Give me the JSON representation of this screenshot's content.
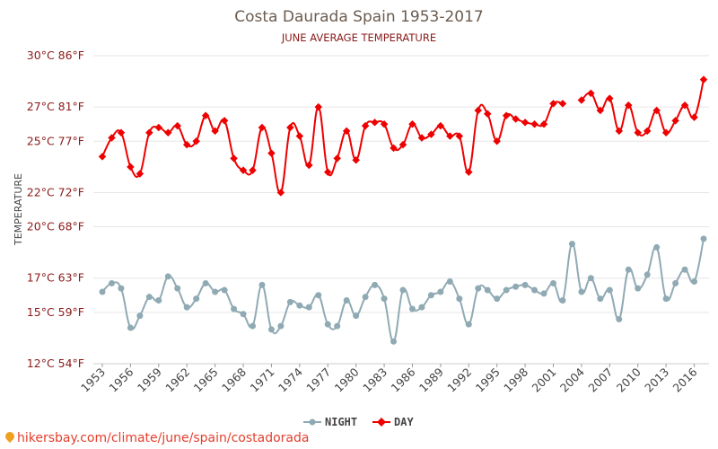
{
  "chart_data": {
    "type": "line",
    "title": "Costa Daurada Spain 1953-2017",
    "subtitle": "JUNE AVERAGE TEMPERATURE",
    "ylabel": "TEMPERATURE",
    "xlabel": "",
    "ylim": [
      12,
      30
    ],
    "y_ticks": [
      {
        "value": 12,
        "label": "12°C 54°F"
      },
      {
        "value": 15,
        "label": "15°C 59°F"
      },
      {
        "value": 17,
        "label": "17°C 63°F"
      },
      {
        "value": 20,
        "label": "20°C 68°F"
      },
      {
        "value": 22,
        "label": "22°C 72°F"
      },
      {
        "value": 25,
        "label": "25°C 77°F"
      },
      {
        "value": 27,
        "label": "27°C 81°F"
      },
      {
        "value": 30,
        "label": "30°C 86°F"
      }
    ],
    "x_tick_labels": [
      "1953",
      "1956",
      "1959",
      "1962",
      "1965",
      "1968",
      "1971",
      "1974",
      "1977",
      "1980",
      "1983",
      "1986",
      "1989",
      "1992",
      "1995",
      "1998",
      "2001",
      "2004",
      "2007",
      "2010",
      "2013",
      "2016"
    ],
    "x": [
      1953,
      1954,
      1955,
      1956,
      1957,
      1958,
      1959,
      1960,
      1961,
      1962,
      1963,
      1964,
      1965,
      1966,
      1967,
      1968,
      1969,
      1970,
      1971,
      1972,
      1973,
      1974,
      1975,
      1976,
      1977,
      1978,
      1979,
      1980,
      1981,
      1982,
      1983,
      1984,
      1985,
      1986,
      1987,
      1988,
      1989,
      1990,
      1991,
      1992,
      1993,
      1994,
      1995,
      1996,
      1997,
      1998,
      1999,
      2000,
      2001,
      2002,
      2003,
      2004,
      2005,
      2006,
      2007,
      2008,
      2009,
      2010,
      2011,
      2012,
      2013,
      2014,
      2015,
      2016,
      2017
    ],
    "series": [
      {
        "name": "NIGHT",
        "color": "#90aab4",
        "values": [
          16.2,
          16.7,
          16.4,
          14.1,
          14.8,
          15.9,
          15.7,
          17.1,
          16.4,
          15.3,
          15.8,
          16.7,
          16.2,
          16.3,
          15.2,
          14.9,
          14.2,
          16.6,
          14.0,
          14.2,
          15.6,
          15.4,
          15.3,
          16.0,
          14.3,
          14.2,
          15.7,
          14.8,
          15.9,
          16.6,
          15.8,
          13.3,
          16.3,
          15.2,
          15.3,
          16.0,
          16.2,
          16.8,
          15.8,
          14.3,
          16.4,
          16.3,
          15.8,
          16.3,
          16.5,
          16.6,
          16.3,
          16.1,
          16.7,
          15.7,
          19.0,
          16.2,
          17.0,
          15.8,
          16.3,
          14.6,
          17.5,
          16.4,
          17.2,
          18.8,
          15.8,
          16.7,
          17.5,
          16.8,
          19.3
        ]
      },
      {
        "name": "DAY",
        "color": "#ee0000",
        "values": [
          24.1,
          25.2,
          25.5,
          23.5,
          23.1,
          25.5,
          25.8,
          25.5,
          25.9,
          24.8,
          25.0,
          26.5,
          25.6,
          26.2,
          24.0,
          23.3,
          23.3,
          25.8,
          24.3,
          22.0,
          25.8,
          25.3,
          23.6,
          27.0,
          23.2,
          24.0,
          25.6,
          23.9,
          25.9,
          26.1,
          26.0,
          24.6,
          24.8,
          26.0,
          25.2,
          25.4,
          25.9,
          25.3,
          25.3,
          23.2,
          26.8,
          26.6,
          25.0,
          26.5,
          26.3,
          26.1,
          26.0,
          26.0,
          27.2,
          27.2,
          null,
          27.4,
          27.8,
          26.8,
          27.5,
          25.6,
          27.1,
          25.5,
          25.6,
          26.8,
          25.5,
          26.2,
          27.1,
          26.4,
          28.6
        ]
      }
    ],
    "legend": {
      "position": "bottom-center",
      "entries": [
        "NIGHT",
        "DAY"
      ]
    }
  },
  "watermark": "hikersbay.com/climate/june/spain/costadorada"
}
